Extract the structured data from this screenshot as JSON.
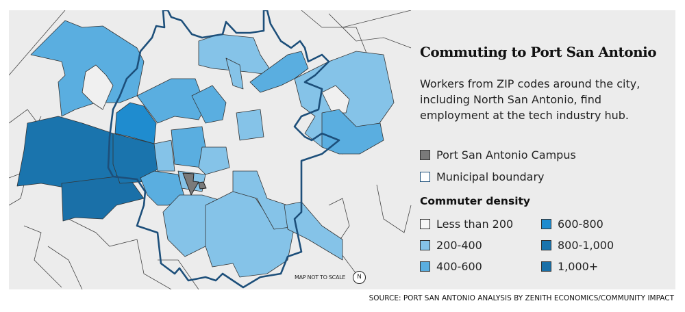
{
  "title": "Commuting to Port San Antonio",
  "description": "Workers from ZIP codes around the city, including North San Antonio, find employment at the tech industry hub.",
  "legend": {
    "campus": "Port San Antonio Campus",
    "boundary": "Municipal boundary",
    "density_heading": "Commuter density",
    "density": [
      {
        "label": "Less than 200",
        "color": "#f0f0f0"
      },
      {
        "label": "200-400",
        "color": "#85c3e8"
      },
      {
        "label": "400-600",
        "color": "#5aaee0"
      },
      {
        "label": "600-800",
        "color": "#1f8ccf"
      },
      {
        "label": "800-1,000",
        "color": "#1a74ad"
      },
      {
        "label": "1,000+",
        "color": "#1a70a8"
      }
    ]
  },
  "colors": {
    "campus": "#7a7a7a",
    "boundary": "#1d4f7a",
    "panel": "#ececec"
  },
  "map_note": "MAP NOT TO SCALE",
  "north_label": "N",
  "source": "SOURCE: PORT SAN ANTONIO ANALYSIS BY ZENITH ECONOMICS/COMMUNITY IMPACT"
}
